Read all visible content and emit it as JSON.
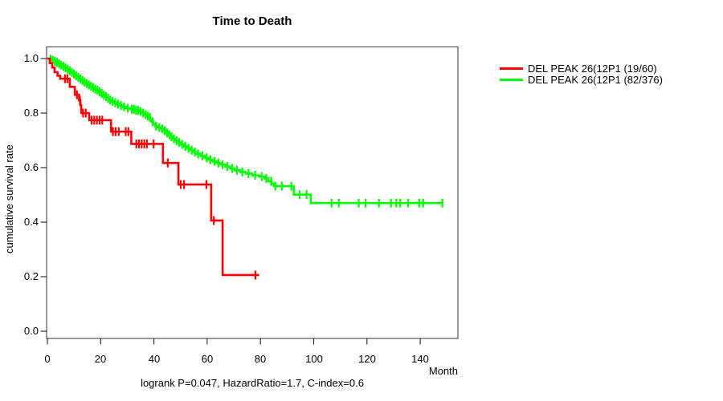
{
  "chart_data": {
    "type": "line",
    "subtype": "kaplan-meier-step-curves",
    "title": "Time to Death",
    "xlabel": "Month",
    "ylabel": "cumulative survival rate",
    "annotation": "logrank P=0.047, HazardRatio=1.7, C-index=0.6",
    "xlim": [
      0,
      154
    ],
    "ylim": [
      0.0,
      1.0
    ],
    "x_ticks": [
      0,
      20,
      40,
      60,
      80,
      100,
      120,
      140
    ],
    "x_tick_labels": [
      "0",
      "20",
      "40",
      "60",
      "80",
      "100",
      "120",
      "140"
    ],
    "y_ticks": [
      0.0,
      0.2,
      0.4,
      0.6,
      0.8,
      1.0
    ],
    "y_tick_labels": [
      "0.0",
      "0.2",
      "0.4",
      "0.6",
      "0.8",
      "1.0"
    ],
    "grid": false,
    "legend_position": "right-outside",
    "series": [
      {
        "name": "DEL PEAK 26(12P1 (19/60)",
        "color": "#ff0000",
        "events": "19/60",
        "end_month": 79.5,
        "points": [
          [
            0,
            1.0
          ],
          [
            0.9,
            0.983
          ],
          [
            1.8,
            0.967
          ],
          [
            2.7,
            0.95
          ],
          [
            3.8,
            0.937
          ],
          [
            4.8,
            0.926
          ],
          [
            8.4,
            0.896
          ],
          [
            10.3,
            0.867
          ],
          [
            11.9,
            0.847
          ],
          [
            12.4,
            0.828
          ],
          [
            12.7,
            0.8
          ],
          [
            15.7,
            0.774
          ],
          [
            23.9,
            0.732
          ],
          [
            31.5,
            0.687
          ],
          [
            43.4,
            0.617
          ],
          [
            49.2,
            0.538
          ],
          [
            61.5,
            0.406
          ],
          [
            65.8,
            0.206
          ]
        ],
        "censor_months": [
          6.6,
          7.5,
          11.1,
          12.2,
          13.4,
          14.4,
          16.6,
          17.6,
          18.6,
          19.6,
          20.6,
          24.6,
          25.6,
          26.8,
          29.4,
          30.4,
          33.4,
          34.4,
          35.4,
          36.4,
          37.4,
          39.9,
          45.2,
          50.1,
          51.3,
          59.7,
          62.5,
          78.1
        ]
      },
      {
        "name": "DEL PEAK 26(12P1 (82/376)",
        "color": "#00ff00",
        "events": "82/376",
        "end_month": 148.7,
        "points": [
          [
            0,
            1.0
          ],
          [
            0.8,
            0.997
          ],
          [
            1.6,
            0.994
          ],
          [
            2.4,
            0.99
          ],
          [
            3.2,
            0.986
          ],
          [
            4.0,
            0.981
          ],
          [
            4.8,
            0.976
          ],
          [
            5.6,
            0.971
          ],
          [
            6.4,
            0.966
          ],
          [
            7.2,
            0.961
          ],
          [
            8.0,
            0.955
          ],
          [
            8.8,
            0.949
          ],
          [
            9.6,
            0.943
          ],
          [
            10.4,
            0.937
          ],
          [
            11.2,
            0.931
          ],
          [
            12.0,
            0.925
          ],
          [
            12.8,
            0.919
          ],
          [
            13.6,
            0.913
          ],
          [
            14.4,
            0.908
          ],
          [
            15.2,
            0.903
          ],
          [
            16.0,
            0.898
          ],
          [
            16.8,
            0.893
          ],
          [
            17.6,
            0.888
          ],
          [
            18.4,
            0.884
          ],
          [
            19.2,
            0.878
          ],
          [
            20.0,
            0.872
          ],
          [
            20.8,
            0.866
          ],
          [
            21.6,
            0.86
          ],
          [
            22.4,
            0.854
          ],
          [
            23.2,
            0.848
          ],
          [
            24.0,
            0.843
          ],
          [
            25.0,
            0.838
          ],
          [
            26.0,
            0.833
          ],
          [
            27.0,
            0.828
          ],
          [
            28.2,
            0.823
          ],
          [
            29.5,
            0.818
          ],
          [
            31.0,
            0.814
          ],
          [
            32.8,
            0.81
          ],
          [
            34.6,
            0.806
          ],
          [
            35.5,
            0.8
          ],
          [
            36.3,
            0.794
          ],
          [
            37.1,
            0.789
          ],
          [
            37.9,
            0.784
          ],
          [
            38.6,
            0.776
          ],
          [
            39.2,
            0.768
          ],
          [
            39.8,
            0.76
          ],
          [
            40.5,
            0.752
          ],
          [
            41.5,
            0.747
          ],
          [
            42.8,
            0.742
          ],
          [
            43.8,
            0.735
          ],
          [
            44.5,
            0.727
          ],
          [
            45.3,
            0.72
          ],
          [
            46.1,
            0.713
          ],
          [
            47.0,
            0.706
          ],
          [
            48.0,
            0.699
          ],
          [
            49.0,
            0.692
          ],
          [
            50.0,
            0.685
          ],
          [
            51.2,
            0.678
          ],
          [
            52.4,
            0.671
          ],
          [
            53.6,
            0.664
          ],
          [
            54.8,
            0.657
          ],
          [
            56.0,
            0.65
          ],
          [
            57.5,
            0.643
          ],
          [
            59.0,
            0.636
          ],
          [
            60.5,
            0.629
          ],
          [
            62.0,
            0.623
          ],
          [
            63.5,
            0.617
          ],
          [
            65.0,
            0.611
          ],
          [
            66.8,
            0.604
          ],
          [
            68.6,
            0.597
          ],
          [
            70.4,
            0.59
          ],
          [
            72.4,
            0.584
          ],
          [
            74.5,
            0.578
          ],
          [
            77.0,
            0.572
          ],
          [
            79.5,
            0.567
          ],
          [
            81.5,
            0.56
          ],
          [
            83.0,
            0.55
          ],
          [
            84.2,
            0.541
          ],
          [
            85.0,
            0.532
          ],
          [
            92.5,
            0.501
          ],
          [
            98.9,
            0.47
          ]
        ],
        "censor_months": [
          1.2,
          2.0,
          2.8,
          3.6,
          4.4,
          5.2,
          6.0,
          6.8,
          7.6,
          8.4,
          9.2,
          10.0,
          10.8,
          11.6,
          12.4,
          13.2,
          14.0,
          14.8,
          15.6,
          16.4,
          17.2,
          18.0,
          18.8,
          19.6,
          20.4,
          21.2,
          22.0,
          22.8,
          23.6,
          24.5,
          25.5,
          26.5,
          27.6,
          28.8,
          30.2,
          31.7,
          32.5,
          33.3,
          34.1,
          35.0,
          36.0,
          36.9,
          37.7,
          38.5,
          39.5,
          40.8,
          42.0,
          43.2,
          44.1,
          45.0,
          45.8,
          46.6,
          47.5,
          48.5,
          49.5,
          50.6,
          51.8,
          53.0,
          54.2,
          55.4,
          56.6,
          58.2,
          59.8,
          61.2,
          62.8,
          64.2,
          65.8,
          67.6,
          69.4,
          71.2,
          73.2,
          75.5,
          78.0,
          80.5,
          82.2,
          84.0,
          85.6,
          88.0,
          91.6,
          94.7,
          97.3,
          106.7,
          109.4,
          116.9,
          119.5,
          124.5,
          129.0,
          131.0,
          132.5,
          135.5,
          139.6,
          141.1,
          148.3
        ]
      }
    ]
  }
}
